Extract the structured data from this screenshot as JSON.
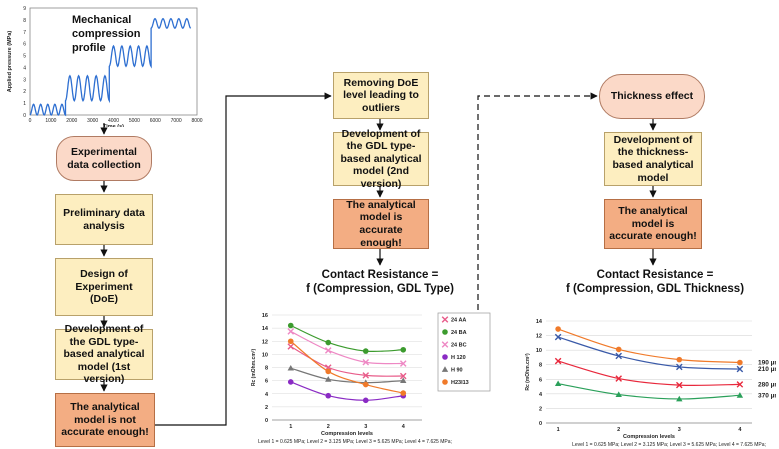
{
  "boxes": {
    "mech_title": "Mechanical compression profile",
    "exp": "Experimental data collection",
    "prelim": "Preliminary data analysis",
    "doe": "Design of Experiment (DoE)",
    "dev1": "Development of the GDL type-based analytical model (1st version)",
    "not_acc": "The analytical model is not accurate enough!",
    "remove": "Removing DoE level leading to outliers",
    "dev2": "Development of the GDL type-based analytical model (2nd version)",
    "acc1": "The analytical model is accurate enough!",
    "thick": "Thickness effect",
    "dev3": "Development of the thickness-based analytical model",
    "acc2": "The analytical model is accurate enough!"
  },
  "titles": {
    "cr1_line1": "Contact Resistance =",
    "cr1_line2": "f (Compression, GDL Type)",
    "cr2_line1": "Contact Resistance =",
    "cr2_line2": "f (Compression, GDL Thickness)"
  },
  "chart_data": [
    {
      "type": "line",
      "ylabel": "Applied pressure (MPa)",
      "xlabel": "Time (s)",
      "xlim": [
        0,
        8000
      ],
      "ylim": [
        0,
        9
      ],
      "x_ticks": [
        0,
        1000,
        2000,
        3000,
        4000,
        5000,
        6000,
        7000,
        8000
      ],
      "y_ticks": [
        0,
        1,
        2,
        3,
        4,
        5,
        6,
        7,
        8,
        9
      ],
      "series": [
        {
          "description": "cyclic compression levels",
          "levels": [
            {
              "t_start": 0,
              "t_end": 1700,
              "low": 0.0,
              "high": 0.9
            },
            {
              "t_start": 1700,
              "t_end": 3800,
              "low": 1.2,
              "high": 3.3
            },
            {
              "t_start": 3800,
              "t_end": 5800,
              "low": 4.1,
              "high": 5.8
            },
            {
              "t_start": 5800,
              "t_end": 7700,
              "low": 7.3,
              "high": 8.1
            }
          ],
          "cycles_per_level": 5
        }
      ],
      "color": "#2e6fd1"
    },
    {
      "type": "line",
      "xlabel": "Compression levels",
      "ylabel": "Rc (mOhm.cm²)",
      "x": [
        1,
        2,
        3,
        4
      ],
      "xlim": [
        0.5,
        4.5
      ],
      "ylim": [
        0,
        16
      ],
      "y_ticks": [
        0,
        2,
        4,
        6,
        8,
        10,
        12,
        14,
        16
      ],
      "grid": true,
      "legend": "right",
      "series": [
        {
          "name": "24 AA",
          "color": "#e85c8a",
          "marker": "x",
          "values": [
            11.2,
            8.0,
            6.8,
            6.7
          ]
        },
        {
          "name": "24 BA",
          "color": "#3c9b2e",
          "marker": "o",
          "values": [
            14.4,
            11.8,
            10.5,
            10.7
          ]
        },
        {
          "name": "24 BC",
          "color": "#ee88c4",
          "marker": "x",
          "values": [
            13.5,
            10.6,
            8.8,
            8.6
          ]
        },
        {
          "name": "H 120",
          "color": "#8a2bc4",
          "marker": "o",
          "values": [
            5.8,
            3.7,
            3.0,
            3.7
          ]
        },
        {
          "name": "H 90",
          "color": "#777777",
          "marker": "^",
          "values": [
            7.9,
            6.2,
            5.7,
            6.0
          ]
        },
        {
          "name": "H23I13",
          "color": "#f07a2a",
          "marker": "o",
          "values": [
            12.0,
            7.4,
            5.4,
            4.1
          ]
        }
      ],
      "footnote": "Level 1 = 0.625 MPa; Level 2 = 3.125 MPa; Level 3 = 5.625 MPa; Level 4 = 7.625 MPa;"
    },
    {
      "type": "line",
      "xlabel": "Compression levels",
      "ylabel": "Rc (mOhm.cm²)",
      "x": [
        1,
        2,
        3,
        4
      ],
      "xlim": [
        0.8,
        4.2
      ],
      "ylim": [
        0,
        14
      ],
      "y_ticks": [
        0,
        2,
        4,
        6,
        8,
        10,
        12,
        14
      ],
      "grid": true,
      "legend": "right",
      "series": [
        {
          "name": "190 µm",
          "color": "#f07a2a",
          "marker": "o",
          "values": [
            12.9,
            10.1,
            8.7,
            8.3
          ]
        },
        {
          "name": "210 µm",
          "color": "#3a5aa8",
          "marker": "x",
          "values": [
            11.8,
            9.2,
            7.7,
            7.4
          ]
        },
        {
          "name": "280 µm",
          "color": "#e8283c",
          "marker": "x",
          "values": [
            8.5,
            6.1,
            5.2,
            5.3
          ]
        },
        {
          "name": "370 µm",
          "color": "#2aa05a",
          "marker": "^",
          "values": [
            5.4,
            3.9,
            3.3,
            3.8
          ]
        }
      ],
      "footnote": "Level 1 = 0.625 MPa; Level 2 = 3.125 MPa; Level 3 = 5.625 MPa; Level 4 = 7.625 MPa;"
    }
  ]
}
